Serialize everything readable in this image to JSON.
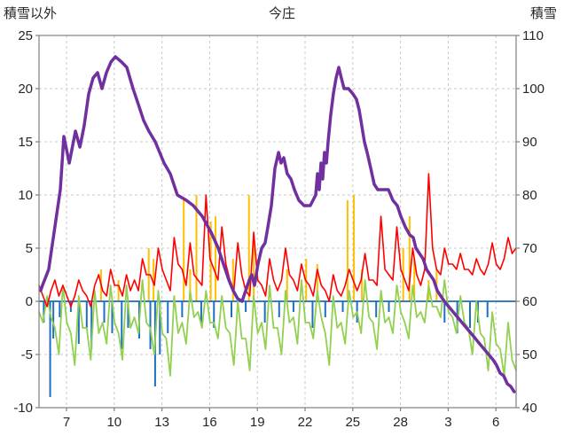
{
  "chart_data": {
    "type": "line",
    "title": "今庄",
    "grid": true,
    "legend": "none",
    "left_axis": {
      "label": "積雪以外",
      "min": -10,
      "max": 25,
      "tick_values": [
        25,
        20,
        15,
        10,
        5,
        0,
        -5,
        -10
      ]
    },
    "right_axis": {
      "label": "積雪",
      "min": 40,
      "max": 110,
      "tick_values": [
        110,
        100,
        90,
        80,
        70,
        60,
        50,
        40
      ]
    },
    "x_axis": {
      "domain": [
        0,
        30
      ],
      "ticks": [
        {
          "label": "7",
          "x": 1.73
        },
        {
          "label": "10",
          "x": 4.73
        },
        {
          "label": "13",
          "x": 7.73
        },
        {
          "label": "16",
          "x": 10.73
        },
        {
          "label": "19",
          "x": 13.73
        },
        {
          "label": "22",
          "x": 16.73
        },
        {
          "label": "25",
          "x": 19.73
        },
        {
          "label": "28",
          "x": 22.73
        },
        {
          "label": "3",
          "x": 25.73
        },
        {
          "label": "6",
          "x": 28.73
        }
      ]
    },
    "series": [
      {
        "name": "orange-spikes",
        "type": "bar",
        "axis": "left",
        "color": "#FFC000",
        "width": 2,
        "points": [
          [
            3.9,
            3
          ],
          [
            5.0,
            2
          ],
          [
            6.9,
            5
          ],
          [
            7.2,
            4
          ],
          [
            9.1,
            9.5
          ],
          [
            9.5,
            3
          ],
          [
            9.9,
            10
          ],
          [
            10.8,
            7.5
          ],
          [
            11.1,
            8
          ],
          [
            12.2,
            4
          ],
          [
            13.2,
            10
          ],
          [
            13.5,
            6
          ],
          [
            15.6,
            3
          ],
          [
            16.8,
            4
          ],
          [
            17.5,
            3.5
          ],
          [
            19.4,
            9.5
          ],
          [
            19.8,
            10
          ],
          [
            20.3,
            3
          ],
          [
            22.9,
            5
          ],
          [
            23.3,
            8
          ],
          [
            23.6,
            4
          ],
          [
            24.5,
            2
          ],
          [
            25.0,
            3
          ]
        ]
      },
      {
        "name": "blue-bars",
        "type": "bar",
        "axis": "left",
        "color": "#1F6FC0",
        "width": 2,
        "baseline": true,
        "points": [
          [
            0.3,
            -2
          ],
          [
            0.7,
            -9
          ],
          [
            0.9,
            -3.5
          ],
          [
            1.3,
            -1.5
          ],
          [
            2.0,
            -1
          ],
          [
            2.5,
            -4
          ],
          [
            3.0,
            -2.5
          ],
          [
            3.3,
            -4.5
          ],
          [
            4.1,
            -2
          ],
          [
            4.6,
            -3
          ],
          [
            5.2,
            -4.5
          ],
          [
            5.6,
            -2.5
          ],
          [
            6.3,
            -3.5
          ],
          [
            7.0,
            -4.5
          ],
          [
            7.3,
            -8
          ],
          [
            7.6,
            -5
          ],
          [
            8.1,
            -3
          ],
          [
            9.0,
            -1.5
          ],
          [
            10.2,
            -2
          ],
          [
            11.0,
            -2.5
          ],
          [
            12.1,
            -1.5
          ],
          [
            13.0,
            -1
          ],
          [
            14.2,
            -2
          ],
          [
            15.1,
            -1.5
          ],
          [
            16.0,
            -1
          ],
          [
            17.2,
            -2.5
          ],
          [
            18.0,
            -1.5
          ],
          [
            19.1,
            -1
          ],
          [
            20.0,
            -2
          ],
          [
            21.2,
            -1.5
          ],
          [
            22.0,
            -1
          ],
          [
            25.5,
            -2
          ],
          [
            26.3,
            -3
          ],
          [
            27.1,
            -2.5
          ],
          [
            27.6,
            -2
          ],
          [
            28.2,
            -1.5
          ]
        ]
      },
      {
        "name": "green-line",
        "type": "line",
        "axis": "left",
        "color": "#92D050",
        "width": 1.8,
        "x_start": 0,
        "x_step": 0.25,
        "values": [
          -1,
          -2,
          0.5,
          -1.5,
          -2.5,
          -5,
          1.5,
          -2,
          -3,
          -6,
          0.5,
          -2.5,
          -2.5,
          -5.5,
          1,
          -3,
          -2,
          -4,
          1.5,
          -2,
          -3,
          -5.5,
          1.5,
          -2.5,
          -1.5,
          -3,
          2,
          -2,
          -2.5,
          -5,
          1,
          -3,
          -3.5,
          -7,
          0.5,
          -3,
          -2,
          -4,
          1,
          -1.5,
          -1,
          -2.5,
          1,
          -2,
          -2,
          -3.5,
          0.5,
          -2.5,
          -3,
          -6,
          0,
          -3.5,
          -3.5,
          -6.5,
          0.5,
          -3,
          -2,
          -4.5,
          1.5,
          -2.5,
          -2.5,
          -5,
          1,
          -2,
          -1.5,
          -4,
          2,
          -2,
          -2,
          -3.5,
          1,
          -1.5,
          -3,
          -6,
          0.5,
          -2.5,
          -2,
          -4,
          1,
          -1.5,
          -1,
          -3,
          2,
          -1.5,
          -2,
          -4.5,
          1,
          -2,
          -1.5,
          -3,
          1.5,
          -1,
          -2,
          -3.5,
          1.5,
          -1.5,
          -1,
          -2,
          1.5,
          -0.5,
          -0.5,
          -1.5,
          2,
          -1,
          -1.5,
          -3,
          0.5,
          -2,
          -2.5,
          -5,
          0,
          -3,
          -3.5,
          -6.5,
          -1,
          -4,
          -4.5,
          -7,
          -2,
          -5.5,
          -6.5
        ]
      },
      {
        "name": "red-line",
        "type": "line",
        "axis": "left",
        "color": "#FF0000",
        "width": 1.6,
        "x_start": 0,
        "x_step": 0.25,
        "values": [
          1.5,
          0.5,
          -0.5,
          1,
          2,
          0.5,
          1.5,
          0.5,
          -0.5,
          0.5,
          2,
          1,
          0.5,
          -0.5,
          1.5,
          2.5,
          1,
          0.5,
          3,
          1.5,
          1.5,
          0.5,
          2.5,
          1,
          2,
          1,
          4,
          2.5,
          2.5,
          1.5,
          5,
          3,
          2,
          1,
          6,
          3.5,
          3,
          1.5,
          5.5,
          2.5,
          2,
          1.5,
          10,
          4,
          3,
          2,
          7,
          3.5,
          2,
          1,
          5.5,
          2.5,
          1,
          0.5,
          6.5,
          2,
          1.5,
          0.5,
          4,
          2,
          1,
          2,
          5,
          2.5,
          2,
          1,
          3.5,
          2,
          1.5,
          0.5,
          3,
          1.5,
          1,
          0,
          2.5,
          1,
          0.5,
          1.5,
          3,
          2,
          1,
          2,
          4.5,
          2,
          2,
          1.5,
          8,
          3,
          2.5,
          2,
          7,
          3,
          2,
          1,
          5,
          2.5,
          1.5,
          3,
          12,
          5,
          3,
          2.5,
          5,
          3.5,
          3.5,
          3,
          4.5,
          3,
          3,
          2.5,
          4,
          3,
          2.5,
          3.5,
          5.5,
          3.5,
          3,
          4,
          6,
          4.5,
          5
        ]
      },
      {
        "name": "snow-depth-purple",
        "type": "line",
        "axis": "right",
        "color": "#7030A0",
        "width": 3.5,
        "points": [
          [
            0.1,
            62
          ],
          [
            0.22,
            63
          ],
          [
            0.61,
            66
          ],
          [
            1.0,
            74
          ],
          [
            1.34,
            81
          ],
          [
            1.56,
            91
          ],
          [
            1.9,
            86
          ],
          [
            2.29,
            92
          ],
          [
            2.57,
            89
          ],
          [
            2.84,
            93
          ],
          [
            3.12,
            99
          ],
          [
            3.4,
            102
          ],
          [
            3.68,
            103
          ],
          [
            3.96,
            100
          ],
          [
            4.24,
            103
          ],
          [
            4.52,
            105
          ],
          [
            4.8,
            106
          ],
          [
            5.19,
            105
          ],
          [
            5.52,
            104
          ],
          [
            5.91,
            100
          ],
          [
            6.25,
            97
          ],
          [
            6.58,
            94
          ],
          [
            6.91,
            92
          ],
          [
            7.31,
            90
          ],
          [
            7.86,
            86
          ],
          [
            8.25,
            84
          ],
          [
            8.7,
            80
          ],
          [
            9.26,
            79
          ],
          [
            9.7,
            78
          ],
          [
            10.26,
            76
          ],
          [
            10.82,
            73
          ],
          [
            11.27,
            70
          ],
          [
            11.6,
            67
          ],
          [
            11.94,
            64
          ],
          [
            12.21,
            62
          ],
          [
            12.49,
            60.5
          ],
          [
            12.77,
            60
          ],
          [
            12.99,
            62
          ],
          [
            13.22,
            64
          ],
          [
            13.38,
            65
          ],
          [
            13.55,
            63
          ],
          [
            13.77,
            67
          ],
          [
            14.0,
            70
          ],
          [
            14.22,
            71
          ],
          [
            14.39,
            74
          ],
          [
            14.61,
            78
          ],
          [
            14.83,
            85
          ],
          [
            15.06,
            88
          ],
          [
            15.22,
            86
          ],
          [
            15.39,
            87
          ],
          [
            15.61,
            84
          ],
          [
            15.84,
            83
          ],
          [
            16.06,
            81
          ],
          [
            16.34,
            79
          ],
          [
            16.67,
            78
          ],
          [
            17.06,
            78
          ],
          [
            17.4,
            80
          ],
          [
            17.51,
            84
          ],
          [
            17.62,
            81
          ],
          [
            17.73,
            86
          ],
          [
            17.84,
            83
          ],
          [
            17.95,
            88
          ],
          [
            18.07,
            86
          ],
          [
            18.18,
            90
          ],
          [
            18.34,
            95
          ],
          [
            18.51,
            99
          ],
          [
            18.68,
            102
          ],
          [
            18.85,
            104
          ],
          [
            19.01,
            102
          ],
          [
            19.18,
            100
          ],
          [
            19.46,
            100
          ],
          [
            19.74,
            99
          ],
          [
            19.96,
            98
          ],
          [
            20.13,
            96
          ],
          [
            20.3,
            93
          ],
          [
            20.46,
            90
          ],
          [
            20.63,
            88
          ],
          [
            20.86,
            85
          ],
          [
            21.08,
            82
          ],
          [
            21.3,
            81
          ],
          [
            21.64,
            81
          ],
          [
            21.97,
            81
          ],
          [
            22.25,
            79
          ],
          [
            22.53,
            78
          ],
          [
            22.75,
            76
          ],
          [
            23.03,
            74
          ],
          [
            23.31,
            72.5
          ],
          [
            23.53,
            72
          ],
          [
            23.7,
            70
          ],
          [
            23.92,
            69
          ],
          [
            24.15,
            68
          ],
          [
            24.37,
            66
          ],
          [
            24.59,
            65
          ],
          [
            24.82,
            64
          ],
          [
            25.04,
            62
          ],
          [
            25.26,
            61
          ],
          [
            25.49,
            60
          ],
          [
            25.76,
            59
          ],
          [
            26.04,
            58
          ],
          [
            26.32,
            57
          ],
          [
            26.6,
            56
          ],
          [
            26.88,
            55
          ],
          [
            27.16,
            54
          ],
          [
            27.44,
            53
          ],
          [
            27.71,
            52
          ],
          [
            27.99,
            51
          ],
          [
            28.27,
            50
          ],
          [
            28.55,
            49
          ],
          [
            28.77,
            48
          ],
          [
            28.99,
            46.5
          ],
          [
            29.22,
            46
          ],
          [
            29.44,
            44.5
          ],
          [
            29.66,
            44
          ],
          [
            29.88,
            43
          ]
        ]
      }
    ]
  },
  "colors": {
    "background": "#ffffff",
    "grid": "#c9c9c9",
    "axis": "#7f7f7f",
    "zero_line": "#808080",
    "text": "#262626"
  }
}
